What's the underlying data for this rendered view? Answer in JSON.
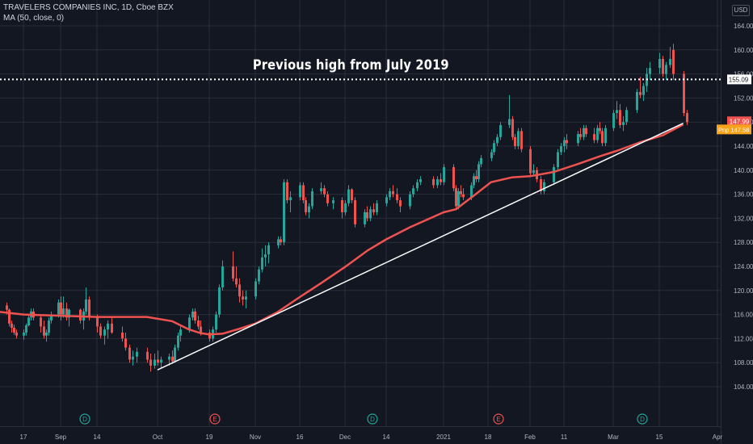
{
  "header": {
    "symbol": "TRAVELERS COMPANIES INC, 1D, Cboe BZX",
    "indicator": "MA (50, close, 0)"
  },
  "currency": "USD",
  "annotation": "Previous high from July 2019",
  "colors": {
    "background": "#131722",
    "grid": "#2a2e39",
    "up": "#26a69a",
    "down": "#ef5350",
    "ma": "#ef5350",
    "trendline": "#ffffff",
    "dotted": "#ffffff",
    "price_badge": "#ef5350",
    "ma_badge": "#f7a21b"
  },
  "chart_data": {
    "type": "candlestick",
    "y_ticks": [
      "164.00",
      "160.00",
      "156.00",
      "152.00",
      "148.00",
      "144.00",
      "140.00",
      "136.00",
      "132.00",
      "128.00",
      "124.00",
      "120.00",
      "116.00",
      "112.00",
      "108.00",
      "104.00"
    ],
    "ylim": [
      101.5,
      167.5
    ],
    "x_ticks": [
      "17",
      "Sep",
      "14",
      "Oct",
      "19",
      "Nov",
      "16",
      "Dec",
      "14",
      "2021",
      "18",
      "Feb",
      "11",
      "Mar",
      "15",
      "Apr"
    ],
    "grid": true,
    "horizontal_level": {
      "value": 155.09,
      "label": "155.09",
      "style": "dotted"
    },
    "last_price": {
      "value": 147.99,
      "label": "147.99"
    },
    "ma_value": {
      "value": 147.58,
      "label": "147.58",
      "prefix": "Pnp"
    },
    "event_markers": [
      {
        "letter": "D",
        "kind": "dividend"
      },
      {
        "letter": "E",
        "kind": "earnings"
      },
      {
        "letter": "D",
        "kind": "dividend"
      },
      {
        "letter": "E",
        "kind": "earnings"
      },
      {
        "letter": "D",
        "kind": "dividend"
      }
    ],
    "trendline": {
      "start": [
        "Oct 1",
        106.8
      ],
      "end": [
        "Mar 22",
        147.8
      ]
    },
    "ma_series": [
      [
        "Aug 6",
        116.5
      ],
      [
        "Aug 17",
        116.0
      ],
      [
        "Sep 1",
        115.8
      ],
      [
        "Sep 14",
        115.6
      ],
      [
        "Sep 28",
        115.6
      ],
      [
        "Oct 6",
        114.9
      ],
      [
        "Oct 12",
        113.5
      ],
      [
        "Oct 16",
        112.9
      ],
      [
        "Oct 19",
        112.7
      ],
      [
        "Oct 23",
        112.8
      ],
      [
        "Oct 28",
        113.6
      ],
      [
        "Nov 2",
        114.5
      ],
      [
        "Nov 9",
        116.4
      ],
      [
        "Nov 16",
        118.9
      ],
      [
        "Nov 23",
        121.2
      ],
      [
        "Dec 1",
        123.9
      ],
      [
        "Dec 8",
        126.6
      ],
      [
        "Dec 14",
        128.5
      ],
      [
        "Dec 21",
        130.5
      ],
      [
        "Dec 31",
        133.0
      ],
      [
        "Jan 5",
        133.5
      ],
      [
        "Jan 13",
        136.0
      ],
      [
        "Jan 19",
        138.0
      ],
      [
        "Jan 26",
        138.8
      ],
      [
        "Feb 1",
        139.0
      ],
      [
        "Feb 8",
        139.7
      ],
      [
        "Feb 16",
        141.0
      ],
      [
        "Feb 24",
        142.3
      ],
      [
        "Mar 2",
        143.2
      ],
      [
        "Mar 9",
        144.6
      ],
      [
        "Mar 16",
        145.8
      ],
      [
        "Mar 22",
        147.6
      ]
    ],
    "candles": [
      [
        "Aug 6",
        119,
        120,
        117,
        119.5
      ],
      [
        "Aug 7",
        119.5,
        119.8,
        117,
        117.5
      ],
      [
        "Aug 10",
        117.5,
        118,
        116,
        116.8
      ],
      [
        "Aug 11",
        116.8,
        117,
        114,
        114.5
      ],
      [
        "Aug 12",
        114.5,
        115,
        113,
        113.8
      ],
      [
        "Aug 13",
        113.8,
        114.3,
        112.6,
        113
      ],
      [
        "Aug 14",
        113,
        113.5,
        112,
        112.5
      ],
      [
        "Aug 17",
        112.5,
        113.5,
        111.8,
        113
      ],
      [
        "Aug 18",
        113,
        114.5,
        112.5,
        114.2
      ],
      [
        "Aug 19",
        114.2,
        116,
        114,
        115.5
      ],
      [
        "Aug 20",
        115.5,
        117,
        115,
        116.5
      ],
      [
        "Aug 21",
        116.5,
        117,
        115,
        115.5
      ],
      [
        "Aug 24",
        115.5,
        116,
        113,
        114
      ],
      [
        "Aug 25",
        114,
        115,
        112,
        112.5
      ],
      [
        "Aug 26",
        112.5,
        113.5,
        111.5,
        113
      ],
      [
        "Aug 27",
        113,
        115.5,
        112.5,
        115
      ],
      [
        "Aug 28",
        115,
        116.5,
        114.5,
        116
      ],
      [
        "Aug 31",
        116,
        118.5,
        115.5,
        118
      ],
      [
        "Sep 1",
        118,
        119,
        115,
        116
      ],
      [
        "Sep 2",
        116,
        119,
        115.5,
        117
      ],
      [
        "Sep 3",
        117,
        118,
        115,
        115.5
      ],
      [
        "Sep 4",
        115.5,
        117,
        114,
        116.8
      ],
      [
        "Sep 8",
        116.8,
        117,
        114.5,
        115
      ],
      [
        "Sep 9",
        115,
        117,
        113.5,
        116.5
      ],
      [
        "Sep 10",
        116.5,
        120.5,
        116,
        118.5
      ],
      [
        "Sep 11",
        118.5,
        119,
        115,
        115.5
      ],
      [
        "Sep 14",
        115.5,
        116,
        113,
        114
      ],
      [
        "Sep 15",
        114,
        114.5,
        112,
        112.5
      ],
      [
        "Sep 16",
        112.5,
        114,
        111,
        113.5
      ],
      [
        "Sep 17",
        113.5,
        115,
        112,
        114.5
      ],
      [
        "Sep 18",
        114.5,
        115.5,
        112.8,
        113
      ],
      [
        "Sep 21",
        113,
        114,
        111.5,
        112
      ],
      [
        "Sep 22",
        112,
        113,
        110,
        110.5
      ],
      [
        "Sep 23",
        110.5,
        111,
        108,
        108.5
      ],
      [
        "Sep 24",
        108.5,
        110,
        107.5,
        109
      ],
      [
        "Sep 25",
        109,
        110.5,
        108,
        109.8
      ],
      [
        "Sep 28",
        109.8,
        110.5,
        108,
        108.5
      ],
      [
        "Sep 29",
        108.5,
        109.5,
        106.5,
        107.5
      ],
      [
        "Sep 30",
        107.5,
        109.5,
        107,
        108.5
      ],
      [
        "Oct 1",
        108.5,
        110,
        107.5,
        108
      ],
      [
        "Oct 2",
        108,
        109,
        107,
        108.5
      ],
      [
        "Oct 5",
        108.5,
        109.5,
        107.5,
        109
      ],
      [
        "Oct 6",
        109,
        110,
        107.8,
        108.2
      ],
      [
        "Oct 7",
        108.2,
        111,
        108,
        110.5
      ],
      [
        "Oct 8",
        110.5,
        113,
        110,
        112.5
      ],
      [
        "Oct 9",
        112.5,
        114,
        111.5,
        113.5
      ],
      [
        "Oct 12",
        113.5,
        116,
        113,
        115.5
      ],
      [
        "Oct 13",
        115.5,
        117,
        115,
        116.5
      ],
      [
        "Oct 14",
        116.5,
        117,
        114.5,
        115
      ],
      [
        "Oct 15",
        115,
        115.8,
        113.5,
        114
      ],
      [
        "Oct 16",
        114,
        115,
        112.5,
        113
      ],
      [
        "Oct 19",
        113,
        113.5,
        111.5,
        112
      ],
      [
        "Oct 20",
        112,
        114,
        111.5,
        113.5
      ],
      [
        "Oct 21",
        113.5,
        116.5,
        113,
        116
      ],
      [
        "Oct 22",
        116,
        121,
        115.5,
        120.5
      ],
      [
        "Oct 23",
        120.5,
        125,
        120,
        124
      ],
      [
        "Oct 26",
        124,
        126.5,
        121.5,
        122
      ],
      [
        "Oct 27",
        122,
        124,
        120.5,
        121
      ],
      [
        "Oct 28",
        121,
        122,
        118,
        119
      ],
      [
        "Oct 29",
        119,
        120,
        117.5,
        118.5
      ],
      [
        "Oct 30",
        118.5,
        120,
        117,
        119
      ],
      [
        "Nov 2",
        119,
        122,
        118.5,
        121.5
      ],
      [
        "Nov 3",
        121.5,
        124,
        121,
        123.5
      ],
      [
        "Nov 4",
        123.5,
        127,
        123,
        125.5
      ],
      [
        "Nov 5",
        125.5,
        127.5,
        124,
        126
      ],
      [
        "Nov 6",
        126,
        128,
        124.5,
        127.5
      ],
      [
        "Nov 9",
        127.5,
        129,
        127,
        128.5
      ],
      [
        "Nov 10",
        128.5,
        129,
        127.5,
        128
      ],
      [
        "Nov 11",
        128,
        138.5,
        127.5,
        138
      ],
      [
        "Nov 12",
        138,
        138.5,
        134.5,
        135
      ],
      [
        "Nov 13",
        135,
        136.5,
        133,
        135.5
      ],
      [
        "Nov 16",
        135.5,
        138,
        135,
        137.5
      ],
      [
        "Nov 17",
        137.5,
        138,
        134.5,
        135
      ],
      [
        "Nov 18",
        135,
        135.5,
        132.5,
        133
      ],
      [
        "Nov 19",
        133,
        134.5,
        132,
        134
      ],
      [
        "Nov 20",
        134,
        137,
        133.5,
        136.5
      ],
      [
        "Nov 23",
        136.5,
        138,
        136,
        137
      ],
      [
        "Nov 24",
        137,
        137.5,
        135.5,
        136
      ],
      [
        "Nov 25",
        136,
        136.5,
        134,
        134.5
      ],
      [
        "Nov 27",
        134.5,
        135.5,
        133.5,
        135
      ],
      [
        "Nov 30",
        135,
        135.5,
        132,
        133
      ],
      [
        "Dec 1",
        133,
        135,
        132.5,
        134.5
      ],
      [
        "Dec 2",
        134.5,
        137.5,
        134,
        136.8
      ],
      [
        "Dec 3",
        136.8,
        137,
        134.5,
        135
      ],
      [
        "Dec 4",
        135,
        135.5,
        130.5,
        131
      ],
      [
        "Dec 7",
        131,
        133.5,
        130.5,
        133
      ],
      [
        "Dec 8",
        133,
        134,
        131.5,
        132
      ],
      [
        "Dec 9",
        132,
        134,
        131.5,
        133.5
      ],
      [
        "Dec 10",
        133.5,
        134.5,
        132.5,
        133
      ],
      [
        "Dec 11",
        133,
        135,
        132.5,
        134.5
      ],
      [
        "Dec 14",
        134.5,
        136,
        134,
        135.5
      ],
      [
        "Dec 15",
        135.5,
        137,
        135,
        136.5
      ],
      [
        "Dec 16",
        136.5,
        137.5,
        135.5,
        136
      ],
      [
        "Dec 17",
        136,
        137,
        134.5,
        135
      ],
      [
        "Dec 18",
        135,
        135.5,
        133,
        134
      ],
      [
        "Dec 21",
        134,
        136.5,
        133.5,
        136
      ],
      [
        "Dec 22",
        136,
        137.5,
        135.5,
        137
      ],
      [
        "Dec 23",
        137,
        138.5,
        136.5,
        138
      ],
      [
        "Dec 24",
        138,
        139,
        137.5,
        138.5
      ],
      [
        "Dec 28",
        138.5,
        139,
        137,
        137.5
      ],
      [
        "Dec 29",
        137.5,
        139,
        137,
        138.5
      ],
      [
        "Dec 30",
        138.5,
        139.5,
        137.5,
        138
      ],
      [
        "Dec 31",
        138,
        141,
        137.5,
        140.5
      ],
      [
        "Jan 4",
        140.5,
        141,
        136.5,
        137
      ],
      [
        "Jan 5",
        137,
        137.5,
        133.5,
        134
      ],
      [
        "Jan 6",
        134,
        137,
        133.5,
        136.5
      ],
      [
        "Jan 7",
        136.5,
        137.5,
        135.5,
        136
      ],
      [
        "Jan 8",
        136,
        137,
        135,
        135.5
      ],
      [
        "Jan 11",
        135.5,
        138,
        135,
        137.5
      ],
      [
        "Jan 12",
        137.5,
        139.5,
        137,
        139
      ],
      [
        "Jan 13",
        139,
        140,
        138,
        138.5
      ],
      [
        "Jan 14",
        138.5,
        141.5,
        138,
        141
      ],
      [
        "Jan 15",
        141,
        142.5,
        140.5,
        142
      ],
      [
        "Jan 19",
        142,
        143.5,
        141.5,
        143
      ],
      [
        "Jan 20",
        143,
        145,
        142.5,
        144.5
      ],
      [
        "Jan 21",
        144.5,
        146,
        144,
        145.5
      ],
      [
        "Jan 22",
        145.5,
        148,
        145,
        147.5
      ],
      [
        "Jan 25",
        147.5,
        152.5,
        147,
        148.5
      ],
      [
        "Jan 26",
        148.5,
        149,
        145,
        145.5
      ],
      [
        "Jan 27",
        145.5,
        146,
        143.5,
        144
      ],
      [
        "Jan 28",
        144,
        147,
        143.5,
        146.5
      ],
      [
        "Jan 29",
        146.5,
        147,
        143,
        143.5
      ],
      [
        "Feb 1",
        143.5,
        144,
        139,
        139.5
      ],
      [
        "Feb 2",
        139.5,
        141,
        139,
        140
      ],
      [
        "Feb 3",
        140,
        140.5,
        138,
        138.5
      ],
      [
        "Feb 4",
        138.5,
        139,
        136,
        136.5
      ],
      [
        "Feb 5",
        136.5,
        138.5,
        136,
        138
      ],
      [
        "Feb 8",
        138,
        141,
        137.5,
        140.5
      ],
      [
        "Feb 9",
        140.5,
        143.5,
        140,
        143
      ],
      [
        "Feb 10",
        143,
        144.5,
        142.5,
        144
      ],
      [
        "Feb 11",
        144,
        145.5,
        143,
        145
      ],
      [
        "Feb 12",
        145,
        146,
        143.5,
        144.5
      ],
      [
        "Feb 16",
        144.5,
        146.5,
        144,
        146
      ],
      [
        "Feb 17",
        146,
        147,
        145,
        145.5
      ],
      [
        "Feb 18",
        145.5,
        147.5,
        145,
        147
      ],
      [
        "Feb 19",
        147,
        147.5,
        145.5,
        146
      ],
      [
        "Feb 22",
        146,
        147,
        144.5,
        145
      ],
      [
        "Feb 23",
        145,
        147.5,
        144.5,
        147
      ],
      [
        "Feb 24",
        147,
        148,
        146,
        146.5
      ],
      [
        "Feb 25",
        146.5,
        147,
        144,
        144.5
      ],
      [
        "Feb 26",
        144.5,
        147.5,
        144,
        147
      ],
      [
        "Mar 1",
        147,
        150,
        146.5,
        149.5
      ],
      [
        "Mar 2",
        149.5,
        151.5,
        148.5,
        150
      ],
      [
        "Mar 3",
        150,
        151,
        147,
        147.5
      ],
      [
        "Mar 4",
        147.5,
        149,
        146.5,
        148
      ],
      [
        "Mar 5",
        148,
        150.5,
        147.5,
        150
      ],
      [
        "Mar 8",
        150,
        153.5,
        149.5,
        153
      ],
      [
        "Mar 9",
        153,
        155.5,
        152,
        152.5
      ],
      [
        "Mar 10",
        152.5,
        154.5,
        151.5,
        154
      ],
      [
        "Mar 11",
        154,
        157,
        153,
        156
      ],
      [
        "Mar 12",
        156,
        158,
        155,
        157
      ],
      [
        "Mar 15",
        157,
        159.5,
        156,
        158.5
      ],
      [
        "Mar 16",
        158.5,
        159,
        155.5,
        156
      ],
      [
        "Mar 17",
        156,
        158,
        155,
        157.5
      ],
      [
        "Mar 18",
        157.5,
        160.5,
        157,
        158.5
      ],
      [
        "Mar 19",
        160,
        161,
        155,
        156
      ],
      [
        "Mar 22",
        156,
        156.5,
        149,
        149.5
      ],
      [
        "Mar 23",
        149.5,
        150,
        147.5,
        148
      ]
    ]
  }
}
